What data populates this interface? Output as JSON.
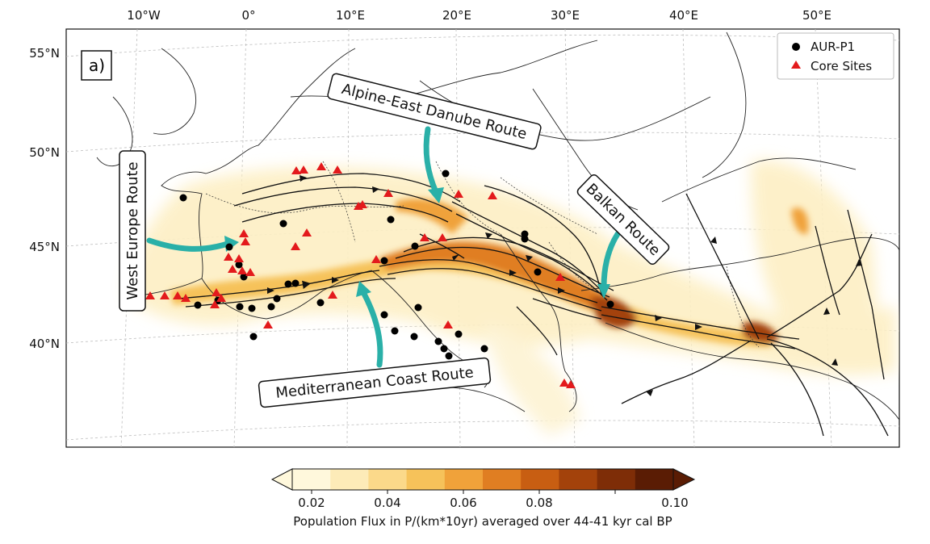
{
  "panel_label": "a)",
  "axes": {
    "lon_ticks": [
      "10°W",
      "0°",
      "10°E",
      "20°E",
      "30°E",
      "40°E",
      "50°E"
    ],
    "lat_ticks": [
      "55°N",
      "50°N",
      "45°N",
      "40°N"
    ]
  },
  "legend": {
    "items": [
      {
        "label": "AUR-P1",
        "marker": "circle",
        "color": "#000000"
      },
      {
        "label": "Core Sites",
        "marker": "triangle",
        "color": "#e31a1c"
      }
    ],
    "placement": "top-right"
  },
  "routes": [
    {
      "label": "Alpine-East Danube Route"
    },
    {
      "label": "West Europe Route"
    },
    {
      "label": "Balkan Route"
    },
    {
      "label": "Mediterranean Coast Route"
    }
  ],
  "colorbar": {
    "ticks": [
      "0.02",
      "0.04",
      "0.06",
      "0.08",
      "0.10"
    ],
    "label": "Population Flux in P/(km*10yr) averaged over 44-41 kyr cal BP",
    "colors": [
      "#fff8dc",
      "#fdebb8",
      "#fbd98a",
      "#f6c25a",
      "#f0a23a",
      "#e07e22",
      "#c85e12",
      "#a3420b",
      "#7e2d07",
      "#5a1c04"
    ],
    "range": [
      0,
      0.1
    ],
    "extend": "both"
  },
  "colors": {
    "route_arrow": "#2ab0a8",
    "flux_high": "#7e2d07",
    "flux_low": "#fdebb8",
    "coast": "#222222"
  }
}
